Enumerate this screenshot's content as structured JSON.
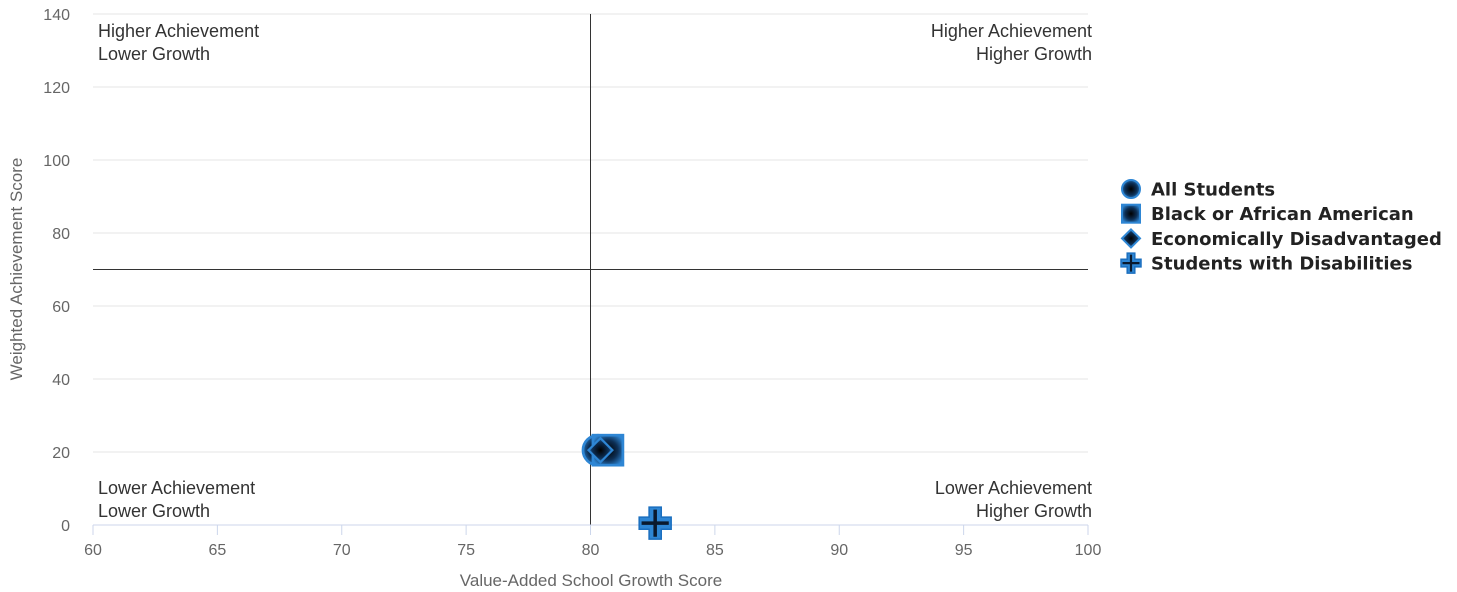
{
  "chart_data": {
    "type": "scatter",
    "xlabel": "Value-Added School Growth Score",
    "ylabel": "Weighted Achievement Score",
    "xlim": [
      60,
      100
    ],
    "ylim": [
      0,
      140
    ],
    "x_ticks": [
      60,
      65,
      70,
      75,
      80,
      85,
      90,
      95,
      100
    ],
    "y_ticks": [
      0,
      20,
      40,
      60,
      80,
      100,
      120,
      140
    ],
    "grid": "horizontal",
    "legend_position": "right",
    "reference_lines": {
      "x": 80,
      "y": 70
    },
    "quadrant_labels": {
      "top_left": [
        "Higher Achievement",
        "Lower Growth"
      ],
      "top_right": [
        "Higher Achievement",
        "Higher Growth"
      ],
      "bottom_left": [
        "Lower Achievement",
        "Lower Growth"
      ],
      "bottom_right": [
        "Lower Achievement",
        "Higher Growth"
      ]
    },
    "series": [
      {
        "name": "All Students",
        "marker": "circle",
        "x": 80.3,
        "y": 20.5
      },
      {
        "name": "Black or African American",
        "marker": "square",
        "x": 80.7,
        "y": 20.5
      },
      {
        "name": "Economically Disadvantaged",
        "marker": "diamond",
        "x": 80.4,
        "y": 20.5
      },
      {
        "name": "Students with Disabilities",
        "marker": "cross",
        "x": 82.6,
        "y": 0.5
      }
    ],
    "colors": {
      "marker_fill": "#2e86d4",
      "marker_dark": "#0a1a2e",
      "grid": "#e6e6e6",
      "reference": "#333333",
      "axis": "#ccd6eb"
    }
  }
}
